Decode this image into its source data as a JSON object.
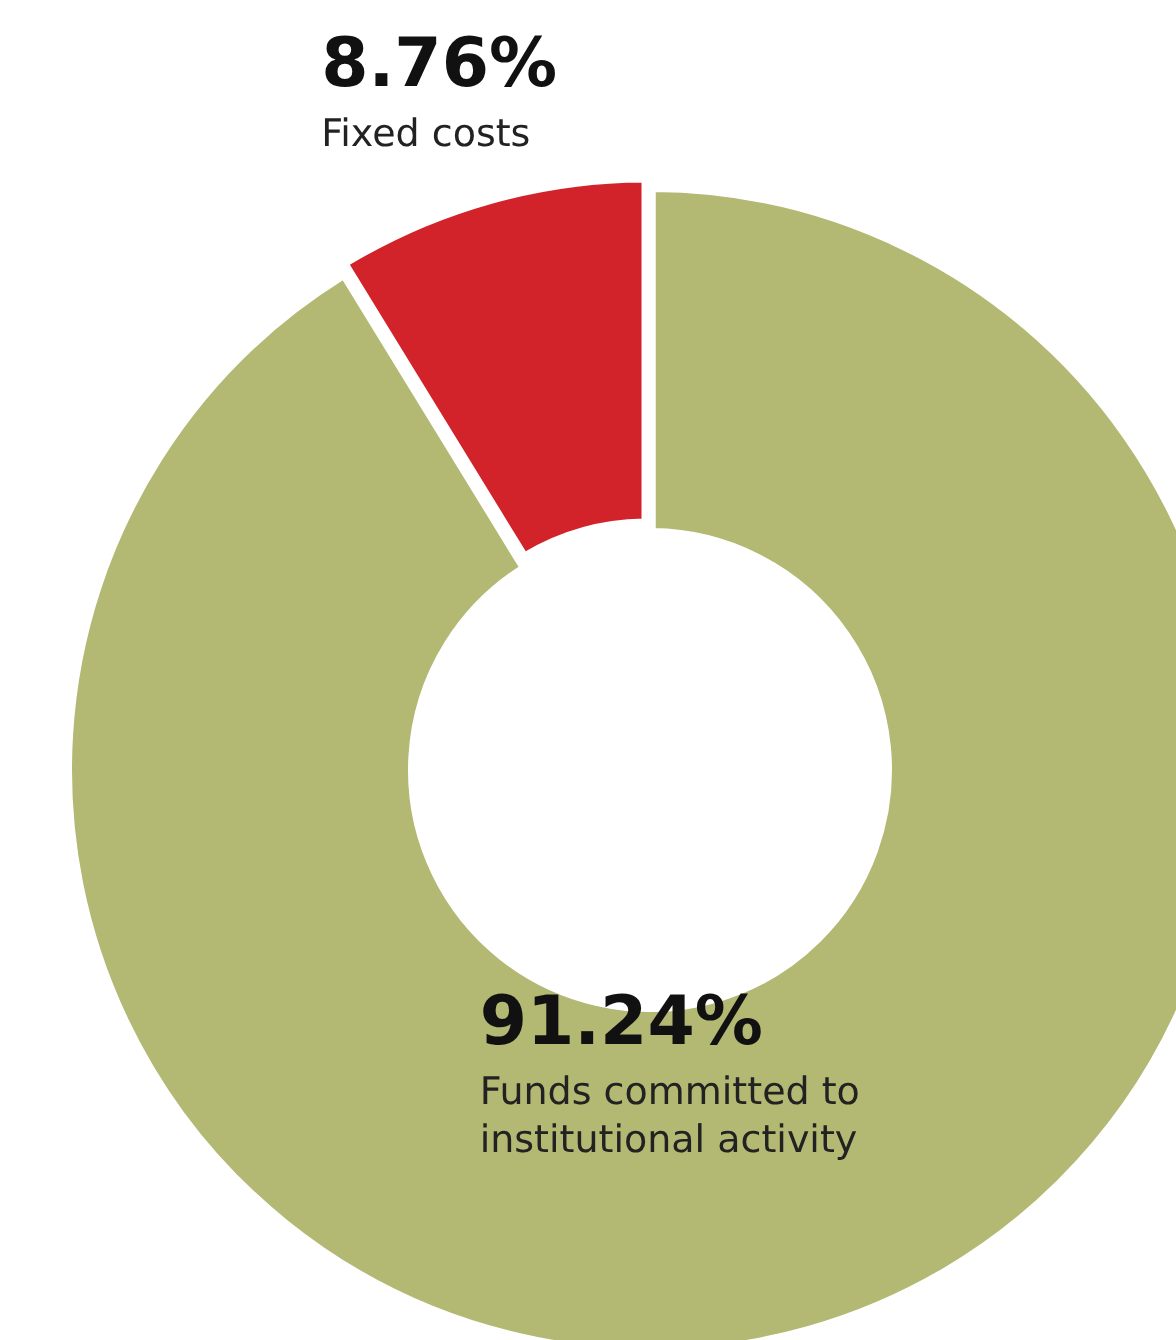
{
  "chart_data": {
    "type": "donut",
    "categories": [
      "Funds committed to institutional activity",
      "Fixed costs"
    ],
    "values": [
      91.24,
      8.76
    ],
    "colors": [
      "#b3b873",
      "#d2232a"
    ],
    "value_labels": [
      "91.24%",
      "8.76%"
    ]
  }
}
